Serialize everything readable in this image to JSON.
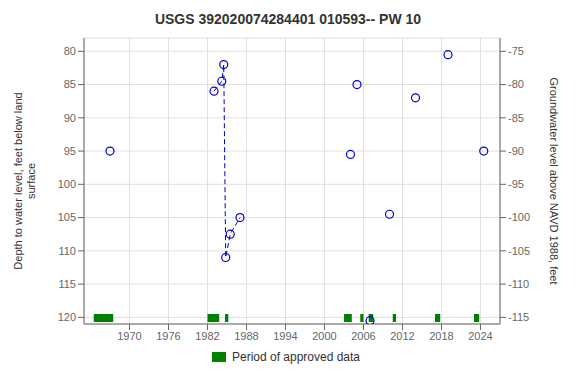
{
  "chart_data": {
    "type": "scatter",
    "title": "USGS 392020074284401 010593-- PW 10",
    "y_label": "Depth to water level, feet below land\nsurface",
    "y2_label": "Groundwater level above NAVD 1988, feet",
    "xlim": [
      1963,
      2027
    ],
    "xticks": [
      1970,
      1976,
      1982,
      1988,
      1994,
      2000,
      2006,
      2012,
      2018,
      2024
    ],
    "ylim": [
      121,
      78
    ],
    "yticks": [
      80,
      85,
      90,
      95,
      100,
      105,
      110,
      115,
      120
    ],
    "y2lim": [
      -116,
      -73
    ],
    "y2ticks": [
      -75,
      -80,
      -85,
      -90,
      -95,
      -100,
      -105,
      -110,
      -115
    ],
    "grid": true,
    "legend": "bottom",
    "series": [
      {
        "type": "line",
        "line_style": "dashed",
        "color": "#0000cc",
        "x": [
          1983.0,
          1984.2,
          1984.5,
          1984.8,
          1985.5,
          1987.0
        ],
        "values": [
          86.0,
          84.5,
          82.0,
          111.0,
          107.5,
          105.0
        ]
      },
      {
        "type": "scatter",
        "marker": "open_circle",
        "line_style": "none",
        "color": "#0000cc",
        "x": [
          1967.0,
          1983.0,
          1984.2,
          1984.5,
          1984.8,
          1985.5,
          1987.0,
          2004.0,
          2005.0,
          2007.0,
          2010.0,
          2014.0,
          2019.0,
          2024.5
        ],
        "values": [
          95.0,
          86.0,
          84.5,
          82.0,
          111.0,
          107.5,
          105.0,
          95.5,
          85.0,
          120.5,
          104.5,
          87.0,
          80.5,
          95.0
        ]
      },
      {
        "name": "Period of approved data",
        "type": "band",
        "color": "#008000",
        "x_ranges": [
          [
            1964.5,
            1967.5
          ],
          [
            1982.0,
            1983.8
          ],
          [
            1984.7,
            1985.2
          ],
          [
            2003.0,
            2004.2
          ],
          [
            2005.5,
            2006.0
          ],
          [
            2006.8,
            2007.5
          ],
          [
            2010.5,
            2011.0
          ],
          [
            2017.0,
            2017.8
          ],
          [
            2023.0,
            2023.8
          ]
        ],
        "y_range": [
          119.5,
          120.7
        ]
      }
    ]
  }
}
